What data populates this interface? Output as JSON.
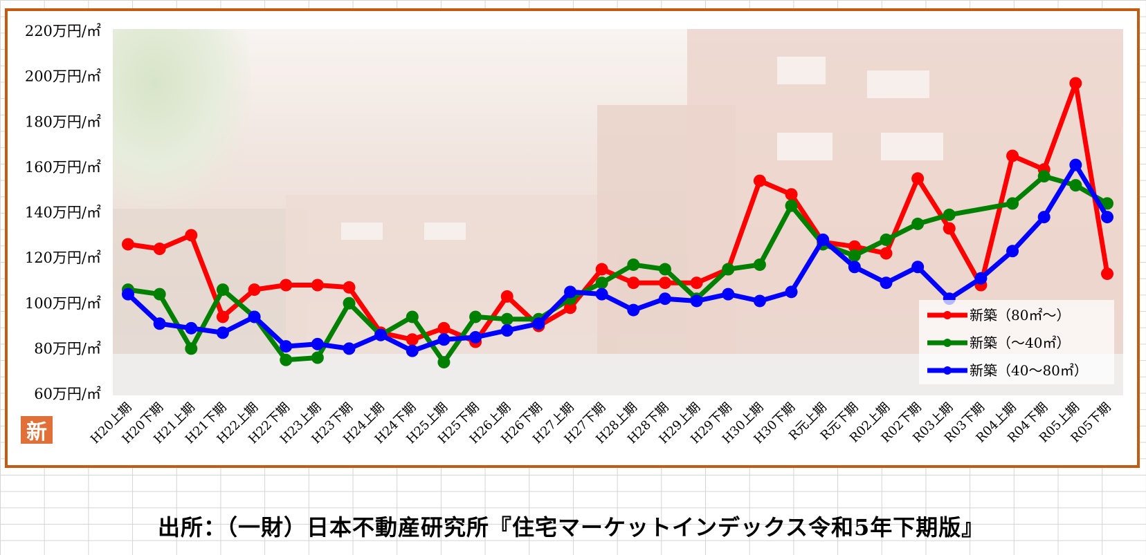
{
  "badge_label": "新",
  "source_text": "出所：（一財）日本不動産研究所『住宅マーケットインデックス令和5年下期版』",
  "chart_data": {
    "type": "line",
    "title": "",
    "xlabel": "",
    "ylabel": "",
    "ylim": [
      60,
      220
    ],
    "yticks": [
      60,
      80,
      100,
      120,
      140,
      160,
      180,
      200,
      220
    ],
    "ytick_labels": [
      "60万円/㎡",
      "80万円/㎡",
      "100万円/㎡",
      "120万円/㎡",
      "140万円/㎡",
      "160万円/㎡",
      "180万円/㎡",
      "200万円/㎡",
      "220万円/㎡"
    ],
    "grid": false,
    "legend_position": "bottom-right",
    "categories": [
      "H20上期",
      "H20下期",
      "H21上期",
      "H21下期",
      "H22上期",
      "H22下期",
      "H23上期",
      "H23下期",
      "H24上期",
      "H24下期",
      "H25上期",
      "H25下期",
      "H26上期",
      "H26下期",
      "H27上期",
      "H27下期",
      "H28上期",
      "H28下期",
      "H29上期",
      "H29下期",
      "H30上期",
      "H30下期",
      "R元上期",
      "R元下期",
      "R02上期",
      "R02下期",
      "R03上期",
      "R03下期",
      "R04上期",
      "R04下期",
      "R05上期",
      "R05下期"
    ],
    "series": [
      {
        "name": "新築（80㎡～）",
        "color": "#ff0000",
        "values": [
          126,
          124,
          130,
          94,
          106,
          108,
          108,
          107,
          87,
          84,
          89,
          83,
          103,
          90,
          98,
          115,
          109,
          109,
          109,
          115,
          154,
          148,
          127,
          125,
          122,
          155,
          133,
          108,
          165,
          159,
          197,
          113
        ]
      },
      {
        "name": "新築（～40㎡）",
        "color": "#008000",
        "values": [
          106,
          104,
          80,
          106,
          94,
          75,
          76,
          100,
          86,
          94,
          74,
          94,
          93,
          93,
          102,
          109,
          117,
          115,
          102,
          115,
          117,
          143,
          126,
          121,
          128,
          135,
          139,
          null,
          144,
          156,
          152,
          144
        ]
      },
      {
        "name": "新築（40～80㎡）",
        "color": "#0000ff",
        "values": [
          104,
          91,
          89,
          87,
          94,
          81,
          82,
          80,
          86,
          79,
          84,
          85,
          88,
          91,
          105,
          104,
          97,
          102,
          101,
          104,
          101,
          105,
          128,
          116,
          109,
          116,
          102,
          111,
          123,
          138,
          161,
          138
        ]
      }
    ]
  }
}
